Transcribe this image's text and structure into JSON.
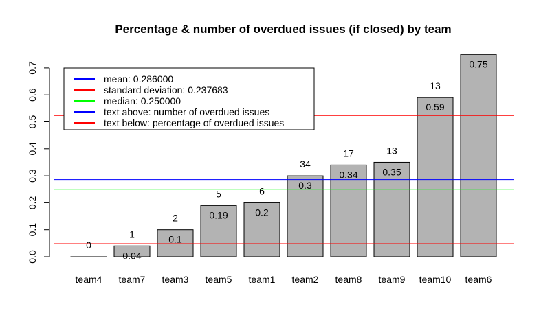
{
  "chart_data": {
    "type": "bar",
    "title": "Percentage & number of overdued issues (if closed) by team",
    "xlabel": "",
    "ylabel": "",
    "ylim": [
      0,
      0.75
    ],
    "yticks": [
      "0.0",
      "0.1",
      "0.2",
      "0.3",
      "0.4",
      "0.5",
      "0.6",
      "0.7"
    ],
    "categories": [
      "team4",
      "team7",
      "team3",
      "team5",
      "team1",
      "team2",
      "team8",
      "team9",
      "team10",
      "team6"
    ],
    "values": [
      0,
      0.04,
      0.1,
      0.19,
      0.2,
      0.3,
      0.34,
      0.35,
      0.59,
      0.75
    ],
    "value_labels": [
      "0",
      "0.04",
      "0.1",
      "0.19",
      "0.2",
      "0.3",
      "0.34",
      "0.35",
      "0.59",
      "0.75"
    ],
    "counts": [
      "0",
      "1",
      "2",
      "5",
      "6",
      "34",
      "17",
      "13",
      "13",
      ""
    ],
    "bar_color": "#b3b3b3",
    "reference_lines": [
      {
        "name": "mean",
        "value": 0.286,
        "color": "#0000ff"
      },
      {
        "name": "mean + standard deviation",
        "value": 0.523683,
        "color": "#ff0000"
      },
      {
        "name": "mean - standard deviation",
        "value": 0.048317,
        "color": "#ff0000"
      },
      {
        "name": "median",
        "value": 0.25,
        "color": "#00ff00"
      }
    ],
    "legend": {
      "position": "top-left",
      "entries": [
        {
          "label": "mean: 0.286000",
          "color": "#0000ff"
        },
        {
          "label": "standard deviation: 0.237683",
          "color": "#ff0000"
        },
        {
          "label": "median: 0.250000",
          "color": "#00ff00"
        },
        {
          "label": "text above: number of overdued issues",
          "color": "#0000ff"
        },
        {
          "label": "text below: percentage of overdued issues",
          "color": "#ff0000"
        }
      ]
    }
  }
}
